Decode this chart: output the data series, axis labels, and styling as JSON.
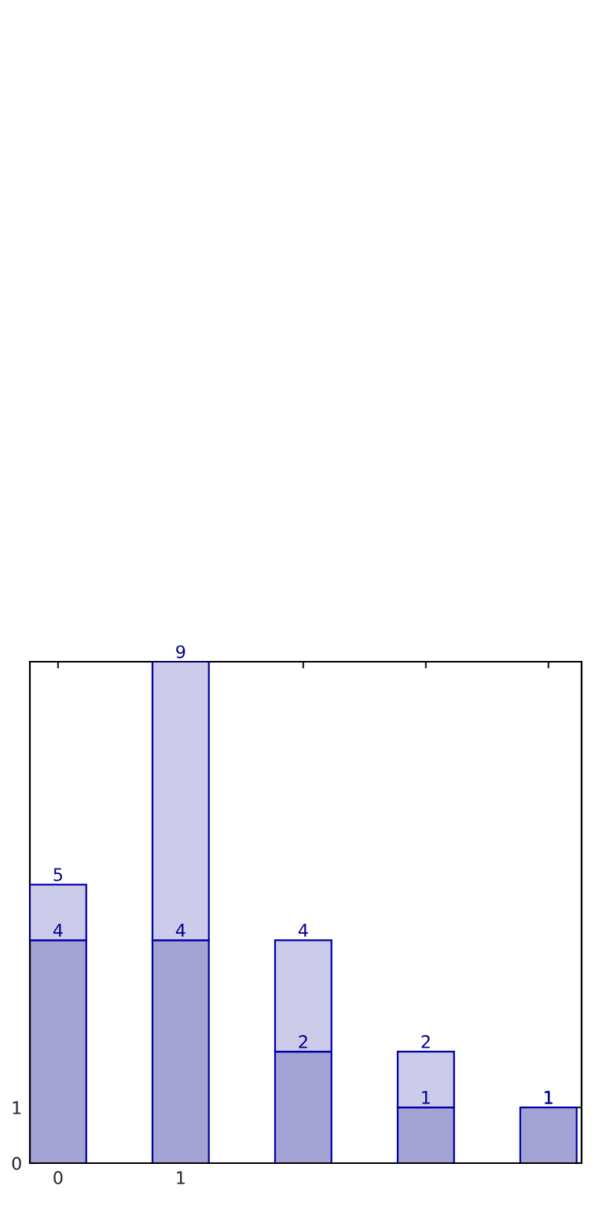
{
  "chart_data": {
    "type": "bar",
    "x": [
      0,
      1,
      2,
      3,
      4
    ],
    "stacked": true,
    "series": [
      {
        "color": "#a4a4d4",
        "values": [
          4,
          4,
          2,
          1,
          1
        ],
        "value_labels": [
          "4",
          "4",
          "2",
          "1",
          "1"
        ]
      },
      {
        "color": "#ccccea",
        "values": [
          1,
          5,
          2,
          1,
          null
        ]
      }
    ],
    "totals": [
      "5",
      "9",
      "4",
      "2",
      "1"
    ],
    "xlim": [
      -0.23,
      4.27
    ],
    "xticks": [
      0,
      1,
      {
        "value": 2,
        "label": null
      },
      {
        "value": 3,
        "label": null
      },
      {
        "value": 4,
        "label": null
      }
    ],
    "ylim": [
      0,
      9
    ],
    "yticks": [
      0,
      1
    ],
    "grid": false,
    "legend": false
  }
}
